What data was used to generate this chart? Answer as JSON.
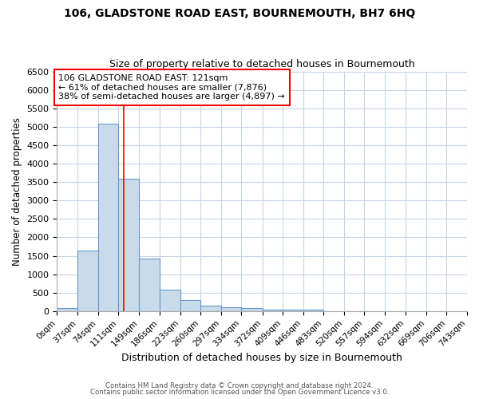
{
  "title": "106, GLADSTONE ROAD EAST, BOURNEMOUTH, BH7 6HQ",
  "subtitle": "Size of property relative to detached houses in Bournemouth",
  "xlabel": "Distribution of detached houses by size in Bournemouth",
  "ylabel": "Number of detached properties",
  "bin_edges": [
    0,
    37,
    74,
    111,
    149,
    186,
    223,
    260,
    297,
    334,
    372,
    409,
    446,
    483,
    520,
    557,
    594,
    632,
    669,
    706,
    743
  ],
  "bar_heights": [
    75,
    1650,
    5090,
    3580,
    1420,
    590,
    300,
    155,
    115,
    75,
    50,
    40,
    30,
    5,
    0,
    0,
    0,
    0,
    0,
    0
  ],
  "bar_color": "#c9daea",
  "bar_edge_color": "#6699cc",
  "red_line_x": 121,
  "annotation_text": "106 GLADSTONE ROAD EAST: 121sqm\n← 61% of detached houses are smaller (7,876)\n38% of semi-detached houses are larger (4,897) →",
  "ylim_max": 6500,
  "yticks": [
    0,
    500,
    1000,
    1500,
    2000,
    2500,
    3000,
    3500,
    4000,
    4500,
    5000,
    5500,
    6000,
    6500
  ],
  "grid_color": "#c8d4e4",
  "footer_line1": "Contains HM Land Registry data © Crown copyright and database right 2024.",
  "footer_line2": "Contains public sector information licensed under the Open Government Licence v3.0.",
  "fig_bg_color": "#ffffff",
  "plot_bg_color": "#ffffff"
}
